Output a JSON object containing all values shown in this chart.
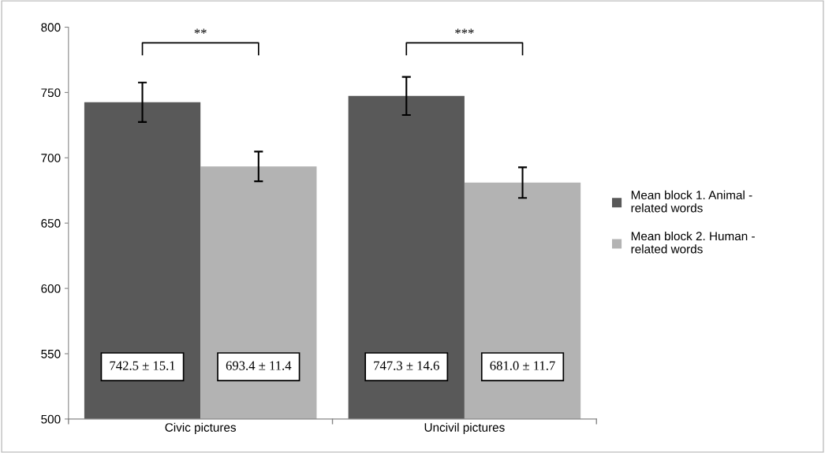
{
  "chart_data": {
    "type": "bar",
    "categories": [
      "Civic pictures",
      "Uncivil pictures"
    ],
    "series": [
      {
        "name": "Mean block 1. Animal - related words",
        "color": "#595959",
        "values": [
          742.5,
          747.3
        ],
        "errors": [
          15.1,
          14.6
        ],
        "value_labels": [
          "742.5 ± 15.1",
          "747.3 ± 14.6"
        ]
      },
      {
        "name": "Mean block 2. Human - related words",
        "color": "#b3b3b3",
        "values": [
          693.4,
          681.0
        ],
        "errors": [
          11.4,
          11.7
        ],
        "value_labels": [
          "693.4 ± 11.4",
          "681.0 ± 11.7"
        ]
      }
    ],
    "annotations": [
      "**",
      "***"
    ],
    "ylim": [
      500,
      800
    ],
    "yticks": [
      500,
      550,
      600,
      650,
      700,
      750,
      800
    ],
    "grid": false,
    "legend": "right"
  }
}
